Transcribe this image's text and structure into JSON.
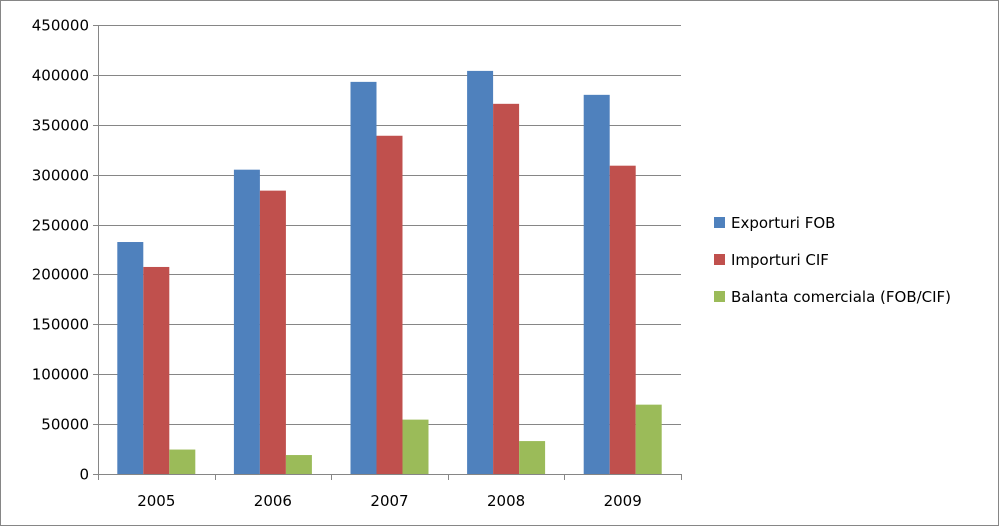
{
  "chart_data": {
    "type": "bar",
    "categories": [
      "2005",
      "2006",
      "2007",
      "2008",
      "2009"
    ],
    "series": [
      {
        "name": "Exporturi FOB",
        "color": "#4F81BD",
        "values": [
          232500,
          305000,
          393000,
          404000,
          380000
        ]
      },
      {
        "name": "Importuri CIF",
        "color": "#C0504D",
        "values": [
          207500,
          284000,
          339000,
          371000,
          309000
        ]
      },
      {
        "name": "Balanta comerciala (FOB/CIF)",
        "color": "#9BBB59",
        "values": [
          24500,
          19000,
          54500,
          33000,
          69500
        ]
      }
    ],
    "ylim": [
      0,
      450000
    ],
    "yticks": [
      "0",
      "50000",
      "100000",
      "150000",
      "200000",
      "250000",
      "300000",
      "350000",
      "400000",
      "450000"
    ],
    "grid": true,
    "legend_position": "right"
  }
}
